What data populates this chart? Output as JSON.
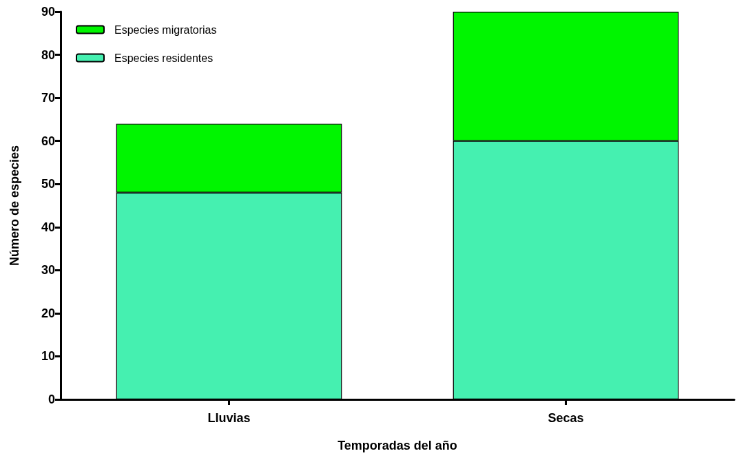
{
  "chart_data": {
    "type": "bar",
    "stacked": true,
    "xlabel": "Temporadas del año",
    "ylabel": "Número de especies",
    "categories": [
      "Lluvias",
      "Secas"
    ],
    "series": [
      {
        "name": "Especies residentes",
        "color": "#45f0b0",
        "values": [
          48,
          60
        ]
      },
      {
        "name": "Especies migratorias",
        "color": "#00f500",
        "values": [
          16,
          30
        ]
      }
    ],
    "ylim": [
      0,
      90
    ],
    "yticks": [
      0,
      10,
      20,
      30,
      40,
      50,
      60,
      70,
      80,
      90
    ],
    "grid": false,
    "legend": "top left"
  }
}
